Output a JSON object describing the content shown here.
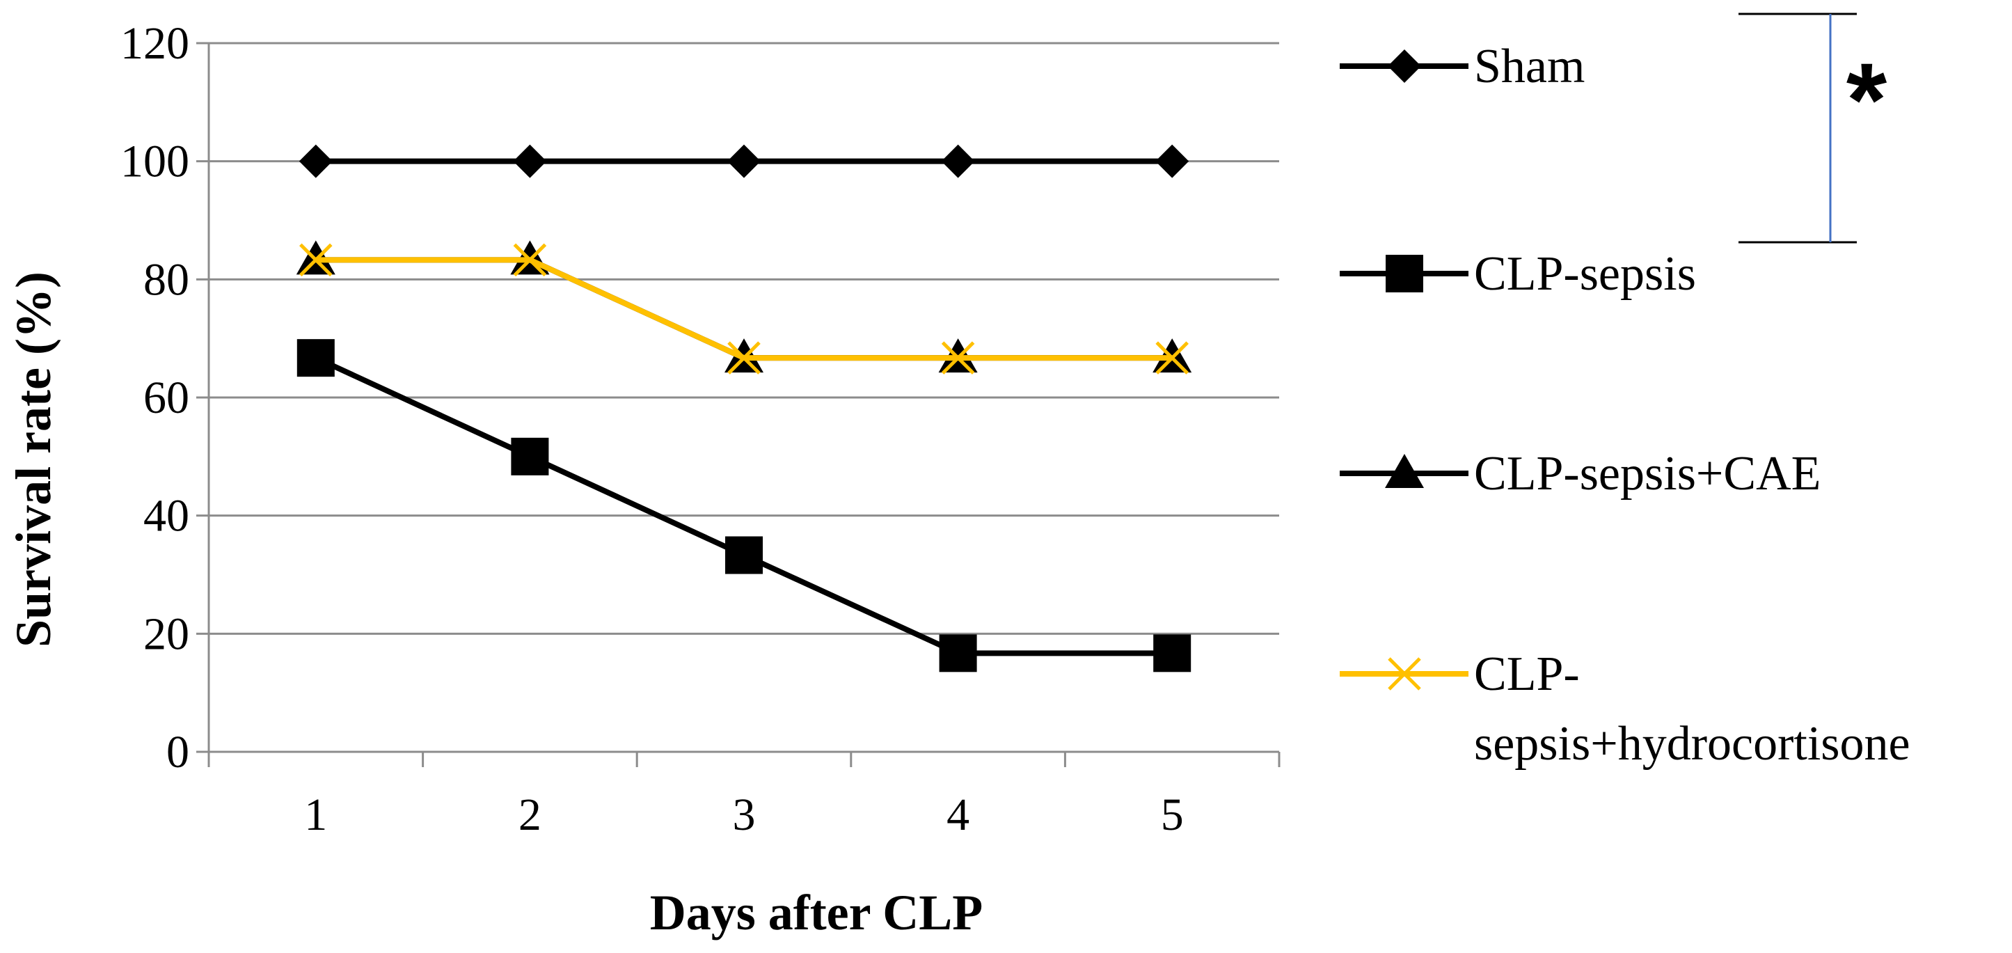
{
  "chart_data": {
    "type": "line",
    "title": "",
    "xlabel": "Days after CLP",
    "ylabel": "Survival rate (%)",
    "categories": [
      "1",
      "2",
      "3",
      "4",
      "5"
    ],
    "ylim": [
      0,
      120
    ],
    "yticks": [
      "0",
      "20",
      "40",
      "60",
      "80",
      "100",
      "120"
    ],
    "grid": true,
    "legend_position": "right",
    "series": [
      {
        "name": "Sham",
        "marker": "diamond",
        "color": "#000000",
        "values": [
          100,
          100,
          100,
          100,
          100
        ]
      },
      {
        "name": "CLP-sepsis",
        "marker": "square",
        "color": "#000000",
        "values": [
          66.7,
          50,
          33.3,
          16.7,
          16.7
        ]
      },
      {
        "name": "CLP-sepsis+CAE",
        "marker": "triangle",
        "color": "#000000",
        "values": [
          83.3,
          83.3,
          66.7,
          66.7,
          66.7
        ]
      },
      {
        "name": "CLP-sepsis+hydrocortisone",
        "marker": "x",
        "color": "#FFC000",
        "values": [
          83.3,
          83.3,
          66.7,
          66.7,
          66.7
        ],
        "legend_lines": [
          "CLP-",
          "sepsis+hydrocortisone"
        ]
      }
    ],
    "annotation": {
      "text": "*",
      "bracket_color": "#4472C4"
    }
  }
}
